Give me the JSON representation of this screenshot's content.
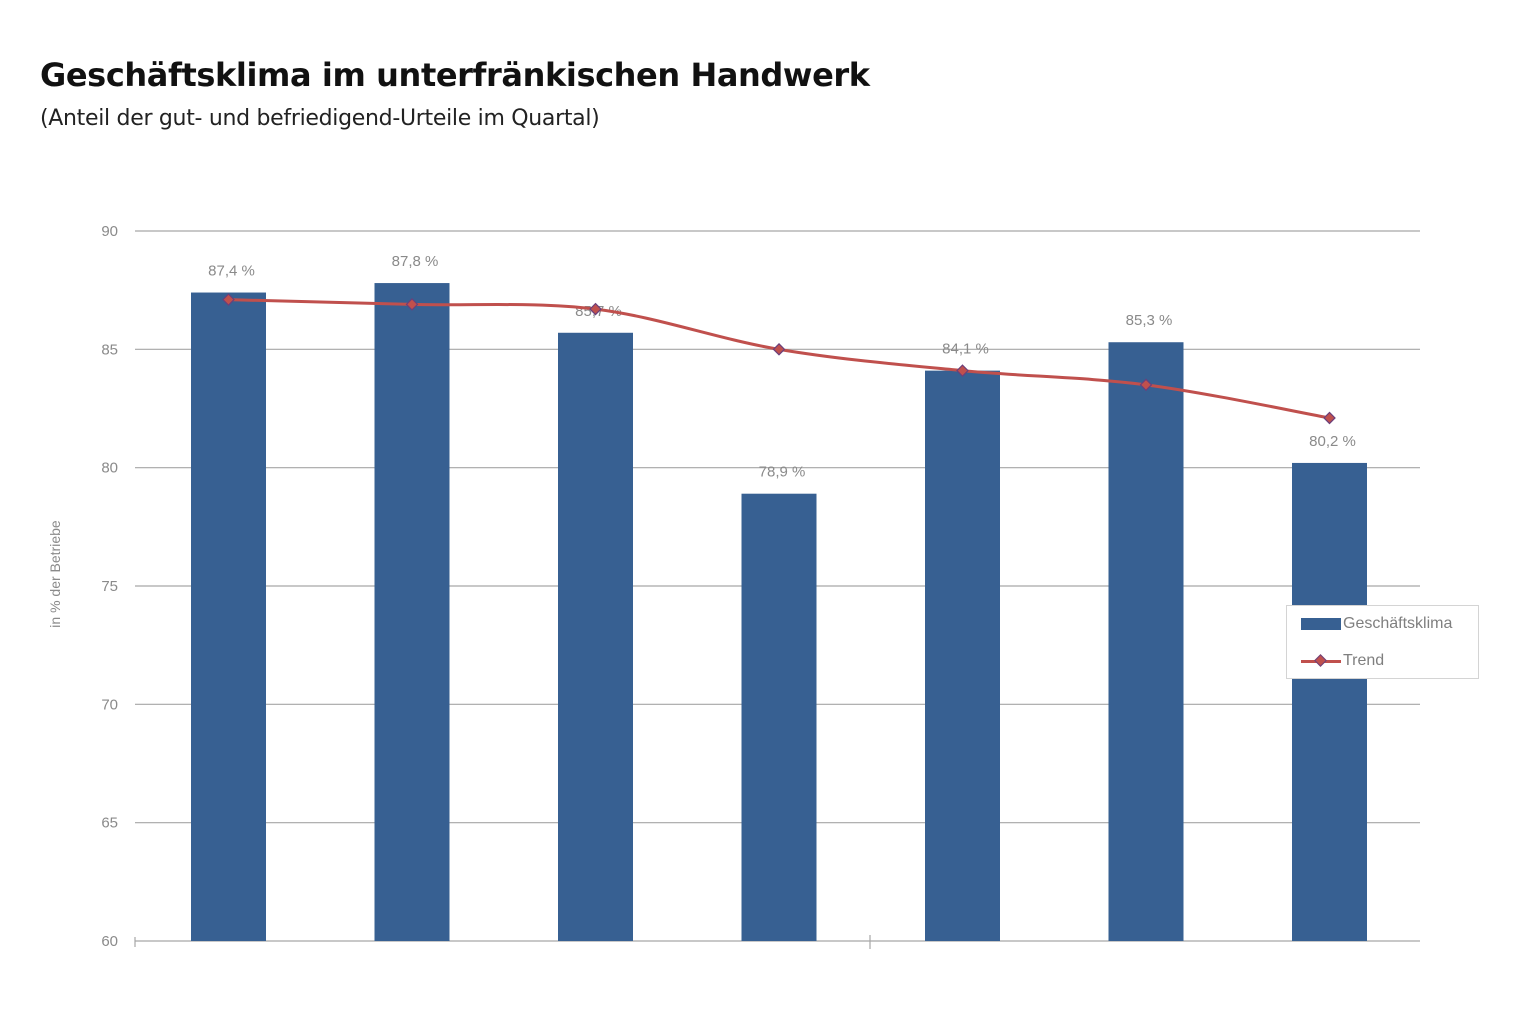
{
  "header": {
    "title": "Geschäftsklima im unterfränkischen Handwerk",
    "subtitle": "(Anteil der gut- und befriedigend-Urteile im Quartal)"
  },
  "legend": {
    "bar_label": "Geschäftsklima",
    "line_label": "Trend"
  },
  "colors": {
    "bar": "#376092",
    "line": "#c0504d",
    "marker": "#c0504d",
    "grid": "#a6a6a6",
    "text": "#8a8a8a"
  },
  "chart_data": {
    "type": "bar",
    "title": "Geschäftsklima im unterfränkischen Handwerk",
    "subtitle": "(Anteil der gut- und befriedigend-Urteile im Quartal)",
    "ylabel": "in % der Betriebe",
    "xlabel": "",
    "ylim": [
      60,
      90
    ],
    "yticks": [
      60,
      65,
      70,
      75,
      80,
      85,
      90
    ],
    "grid": true,
    "legend_position": "right",
    "series": [
      {
        "name": "Geschäftsklima",
        "type": "bar",
        "values": [
          87.4,
          87.8,
          85.7,
          78.9,
          84.1,
          85.3,
          80.2
        ],
        "labels": [
          "87,4 %",
          "87,8 %",
          "85,7 %",
          "78,9 %",
          "84,1 %",
          "85,3 %",
          "80,2 %"
        ]
      },
      {
        "name": "Trend",
        "type": "line",
        "values": [
          87.1,
          86.9,
          86.7,
          85.0,
          84.1,
          83.5,
          82.1
        ]
      }
    ]
  }
}
